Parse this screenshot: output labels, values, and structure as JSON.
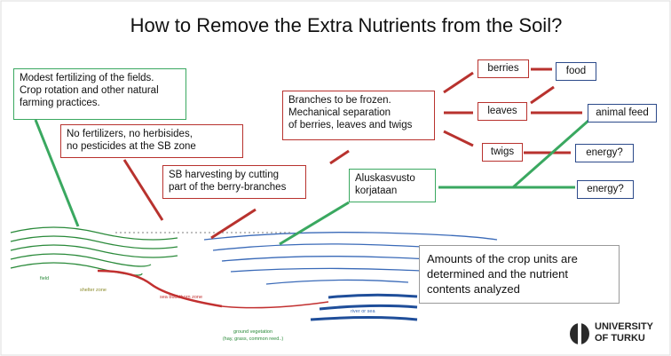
{
  "header": {
    "title": "How to Remove the Extra Nutrients from the Soil?"
  },
  "boxes": {
    "practices": [
      "Modest fertilizing of the fields.",
      "Crop rotation and other natural",
      "farming practices."
    ],
    "no_chemicals": [
      "No fertilizers, no herbisides,",
      "no pesticides at the SB zone"
    ],
    "harvesting": [
      "SB harvesting by cutting",
      "part of the berry-branches"
    ],
    "processing": [
      "Branches to be frozen.",
      "Mechanical separation",
      "of berries, leaves and twigs"
    ],
    "undergrowth": [
      "Aluskasvusto",
      "korjataan"
    ],
    "analysis": [
      "Amounts of the crop units are",
      "determined and the nutrient",
      "contents analyzed"
    ]
  },
  "products": {
    "berries": "berries",
    "leaves": "leaves",
    "twigs": "twigs"
  },
  "uses": {
    "food": "food",
    "animal_feed": "animal feed",
    "energy_1": "energy?",
    "energy_2": "energy?"
  },
  "illustration": {
    "field": "field",
    "shelter": "shelter zone",
    "buckthorn": "sea buckthorn zone",
    "water": "river or sea",
    "ground": [
      "ground vegetation",
      "(hay, grass, common reed..)"
    ]
  },
  "logo": [
    "UNIVERSITY",
    "OF TURKU"
  ]
}
